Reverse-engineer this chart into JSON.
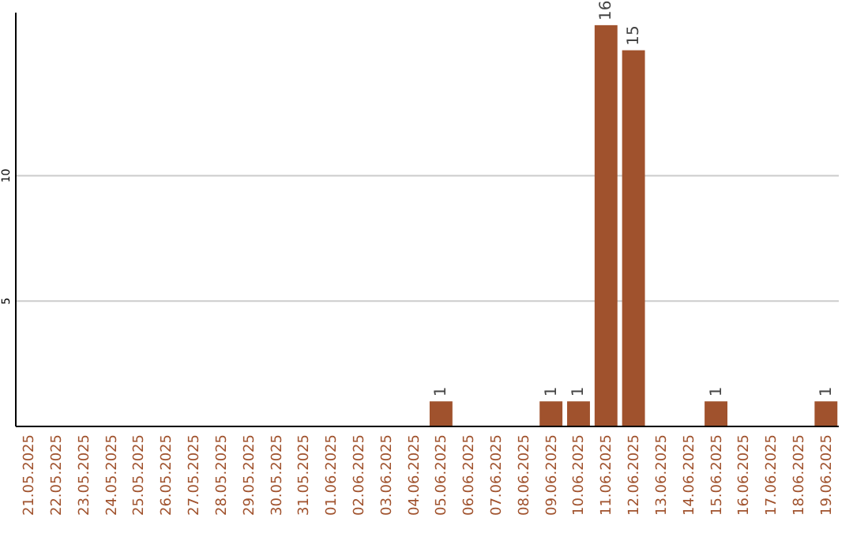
{
  "chart_data": {
    "type": "bar",
    "categories": [
      "21.05.2025",
      "22.05.2025",
      "23.05.2025",
      "24.05.2025",
      "25.05.2025",
      "26.05.2025",
      "27.05.2025",
      "28.05.2025",
      "29.05.2025",
      "30.05.2025",
      "31.05.2025",
      "01.06.2025",
      "02.06.2025",
      "03.06.2025",
      "04.06.2025",
      "05.06.2025",
      "06.06.2025",
      "07.06.2025",
      "08.06.2025",
      "09.06.2025",
      "10.06.2025",
      "11.06.2025",
      "12.06.2025",
      "13.06.2025",
      "14.06.2025",
      "15.06.2025",
      "16.06.2025",
      "17.06.2025",
      "18.06.2025",
      "19.06.2025"
    ],
    "values": [
      0,
      0,
      0,
      0,
      0,
      0,
      0,
      0,
      0,
      0,
      0,
      0,
      0,
      0,
      0,
      1,
      0,
      0,
      0,
      1,
      1,
      16,
      15,
      0,
      0,
      1,
      0,
      0,
      0,
      1
    ],
    "value_labels": [
      null,
      null,
      null,
      null,
      null,
      null,
      null,
      null,
      null,
      null,
      null,
      null,
      null,
      null,
      null,
      "1",
      null,
      null,
      null,
      "1",
      "1",
      "16",
      "15",
      null,
      null,
      "1",
      null,
      null,
      null,
      "1"
    ],
    "color": "#a0522d",
    "ylim": [
      0,
      16.5
    ],
    "yticks": [
      5,
      10
    ],
    "grid": "y"
  }
}
